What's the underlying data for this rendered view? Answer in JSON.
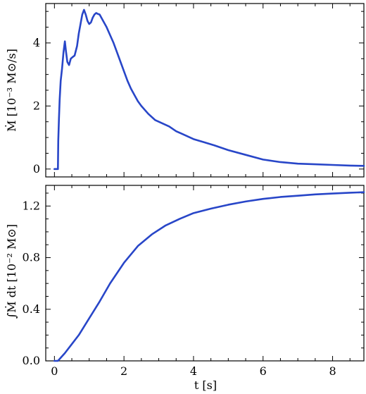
{
  "chart_data": [
    {
      "type": "line",
      "ylabel": "Ṁ [10⁻³ M⊙/s]",
      "xlim": [
        -0.25,
        8.9
      ],
      "ylim": [
        -0.25,
        5.25
      ],
      "xticks": [
        0,
        2,
        4,
        6,
        8
      ],
      "yticks": [
        0,
        2,
        4
      ],
      "ytick_labels": [
        "0",
        "2",
        "4"
      ],
      "show_x_tick_labels": false,
      "grid": false,
      "color": "#2846c8",
      "series": [
        {
          "x": [
            0.0,
            0.1,
            0.11,
            0.13,
            0.15,
            0.18,
            0.22,
            0.26,
            0.3,
            0.33,
            0.37,
            0.42,
            0.47,
            0.52,
            0.58,
            0.65,
            0.7,
            0.75,
            0.8,
            0.85,
            0.9,
            0.95,
            1.0,
            1.05,
            1.1,
            1.15,
            1.2,
            1.25,
            1.3,
            1.4,
            1.5,
            1.6,
            1.7,
            1.8,
            1.9,
            2.0,
            2.1,
            2.2,
            2.3,
            2.4,
            2.5,
            2.7,
            2.9,
            3.1,
            3.3,
            3.5,
            3.7,
            4.0,
            4.3,
            4.6,
            5.0,
            5.5,
            6.0,
            6.5,
            7.0,
            7.5,
            8.0,
            8.5,
            8.9
          ],
          "y": [
            0.0,
            0.0,
            0.9,
            1.6,
            2.2,
            2.8,
            3.2,
            3.7,
            4.05,
            3.75,
            3.4,
            3.3,
            3.5,
            3.55,
            3.6,
            3.9,
            4.3,
            4.6,
            4.9,
            5.05,
            4.9,
            4.7,
            4.6,
            4.65,
            4.8,
            4.9,
            4.95,
            4.92,
            4.9,
            4.7,
            4.5,
            4.25,
            4.0,
            3.7,
            3.4,
            3.1,
            2.8,
            2.55,
            2.35,
            2.15,
            2.0,
            1.75,
            1.55,
            1.45,
            1.35,
            1.2,
            1.1,
            0.95,
            0.85,
            0.75,
            0.6,
            0.45,
            0.3,
            0.22,
            0.17,
            0.15,
            0.13,
            0.11,
            0.1
          ]
        }
      ]
    },
    {
      "type": "line",
      "xlabel": "t [s]",
      "ylabel": "∫Ṁ dt [10⁻² M⊙]",
      "xlim": [
        -0.25,
        8.9
      ],
      "ylim": [
        0.0,
        1.36
      ],
      "xticks": [
        0,
        2,
        4,
        6,
        8
      ],
      "xtick_labels": [
        "0",
        "2",
        "4",
        "6",
        "8"
      ],
      "yticks": [
        0.0,
        0.4,
        0.8,
        1.2
      ],
      "ytick_labels": [
        "0.0",
        "0.4",
        "0.8",
        "1.2"
      ],
      "grid": false,
      "color": "#2846c8",
      "series": [
        {
          "x": [
            0.0,
            0.1,
            0.2,
            0.3,
            0.5,
            0.7,
            1.0,
            1.3,
            1.6,
            2.0,
            2.4,
            2.8,
            3.2,
            3.6,
            4.0,
            4.5,
            5.0,
            5.5,
            6.0,
            6.5,
            7.0,
            7.5,
            8.0,
            8.5,
            8.9
          ],
          "y": [
            0.0,
            0.0,
            0.03,
            0.06,
            0.13,
            0.2,
            0.33,
            0.46,
            0.6,
            0.76,
            0.89,
            0.98,
            1.05,
            1.1,
            1.145,
            1.18,
            1.21,
            1.235,
            1.255,
            1.27,
            1.28,
            1.29,
            1.297,
            1.303,
            1.307
          ]
        }
      ]
    }
  ]
}
